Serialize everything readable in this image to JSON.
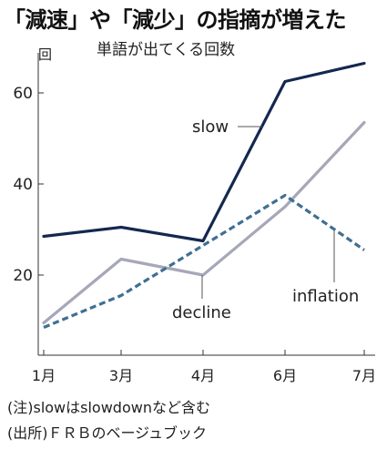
{
  "title": "「減速」や「減少」の指摘が増えた",
  "chart_data": {
    "type": "line",
    "subtitle": "単語が出てくる回数",
    "unit": "回",
    "categories": [
      "1月",
      "3月",
      "4月",
      "6月",
      "7月"
    ],
    "yticks": [
      20,
      40,
      60
    ],
    "ylim": [
      3,
      68
    ],
    "series": [
      {
        "name": "slow",
        "values": [
          28.5,
          30.5,
          27.5,
          62.5,
          66.5
        ],
        "color": "#14284f",
        "style": "solid"
      },
      {
        "name": "decline",
        "values": [
          9.5,
          23.5,
          20,
          35,
          53.5
        ],
        "color": "#a6a7b9",
        "style": "solid"
      },
      {
        "name": "inflation",
        "values": [
          8.5,
          15.5,
          26.5,
          37.5,
          25.5
        ],
        "color": "#3f6f92",
        "style": "dashed"
      }
    ]
  },
  "notes": [
    "(注)slowはslowdownなど含む",
    "(出所)ＦＲＢのベージュブック"
  ]
}
